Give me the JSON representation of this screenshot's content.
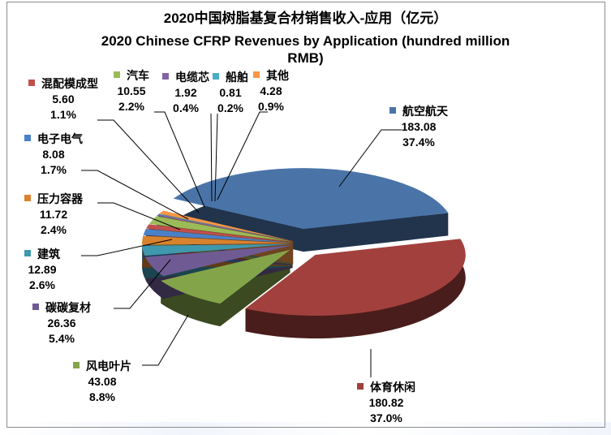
{
  "chart_data": {
    "type": "pie",
    "style": "3d-exploded",
    "title": "2020中国树脂基复合材销售收入-应用（亿元）",
    "subtitle": "2020 Chinese CFRP Revenues by Application (hundred million RMB)",
    "subtitle_line1": "2020 Chinese CFRP Revenues by Application (hundred million",
    "subtitle_line2": "RMB)",
    "slices": [
      {
        "name": "航空航天",
        "value": "183.08",
        "pct": "37.4%",
        "v": 183.08,
        "color": "#4a74a8"
      },
      {
        "name": "体育休闲",
        "value": "180.82",
        "pct": "37.0%",
        "v": 180.82,
        "color": "#a2403d"
      },
      {
        "name": "风电叶片",
        "value": "43.08",
        "pct": "8.8%",
        "v": 43.08,
        "color": "#84a44a"
      },
      {
        "name": "碳碳复材",
        "value": "26.36",
        "pct": "5.4%",
        "v": 26.36,
        "color": "#6f5a94"
      },
      {
        "name": "建筑",
        "value": "12.89",
        "pct": "2.6%",
        "v": 12.89,
        "color": "#3f98ad"
      },
      {
        "name": "压力容器",
        "value": "11.72",
        "pct": "2.4%",
        "v": 11.72,
        "color": "#d9822e"
      },
      {
        "name": "电子电气",
        "value": "8.08",
        "pct": "1.7%",
        "v": 8.08,
        "color": "#4a80c8"
      },
      {
        "name": "混配模成型",
        "value": "5.60",
        "pct": "1.1%",
        "v": 5.6,
        "color": "#c0504d"
      },
      {
        "name": "汽车",
        "value": "10.55",
        "pct": "2.2%",
        "v": 10.55,
        "color": "#9bbb59"
      },
      {
        "name": "电缆芯",
        "value": "1.92",
        "pct": "0.4%",
        "v": 1.92,
        "color": "#8064a2"
      },
      {
        "name": "船舶",
        "value": "0.81",
        "pct": "0.2%",
        "v": 0.81,
        "color": "#4bacc6"
      },
      {
        "name": "其他",
        "value": "4.28",
        "pct": "0.9%",
        "v": 4.28,
        "color": "#f79646"
      }
    ],
    "legend": "none (data labels with leader lines)"
  }
}
